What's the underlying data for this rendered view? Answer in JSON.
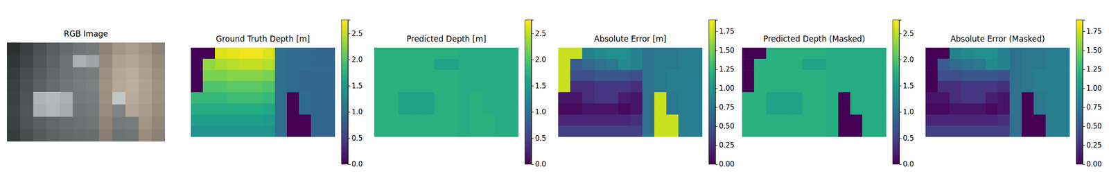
{
  "chart_data": [
    {
      "type": "image",
      "title": "RGB Image",
      "tick_labels": false,
      "colors": [
        [
          "#2b302f",
          "#394040",
          "#4a5150",
          "#585f5e",
          "#646b6a",
          "#6e7574",
          "#737a79",
          "#8c8276",
          "#a39687",
          "#ab9d8e",
          "#a29485",
          "#8e8377"
        ],
        [
          "#313736",
          "#3f4645",
          "#4f5655",
          "#5c6362",
          "#6a7170",
          "#a9b1b1",
          "#9ea6a6",
          "#958a7d",
          "#b0a292",
          "#b5a797",
          "#a89a8a",
          "#968a7d"
        ],
        [
          "#363c3b",
          "#464d4c",
          "#555c5b",
          "#616867",
          "#6c7372",
          "#737a79",
          "#777e7d",
          "#9a8f81",
          "#b4a696",
          "#baac9c",
          "#ad9f8f",
          "#9a8e81"
        ],
        [
          "#3a403f",
          "#4a5150",
          "#5a6160",
          "#656c6b",
          "#6f7675",
          "#757c7b",
          "#7a8180",
          "#9c9183",
          "#b6a898",
          "#bcae9e",
          "#b0a292",
          "#9d9184"
        ],
        [
          "#3c4241",
          "#4e5554",
          "#aeb5b5",
          "#b3baba",
          "#a9b0b0",
          "#737a79",
          "#767d7c",
          "#9a8f81",
          "#c2c6c4",
          "#b8aa9a",
          "#ae a090",
          "#9b8f82"
        ],
        [
          "#3d4342",
          "#4f5655",
          "#a8afaf",
          "#b1b8b8",
          "#a5acac",
          "#6f7675",
          "#737a79",
          "#968b7e",
          "#7c8382",
          "#b2a494",
          "#a99b8b",
          "#978b7e"
        ],
        [
          "#3b4140",
          "#4c5352",
          "#596060",
          "#626969",
          "#686f6e",
          "#6b7271",
          "#6e7574",
          "#8f8478",
          "#737a79",
          "#757c7b",
          "#a39585",
          "#92867a"
        ],
        [
          "#373d3c",
          "#474e4d",
          "#545b5a",
          "#5c6362",
          "#626968",
          "#656c6b",
          "#676e6d",
          "#877d72",
          "#6c7372",
          "#6e7574",
          "#9a8d7f",
          "#8b8074"
        ]
      ]
    },
    {
      "type": "heatmap",
      "title": "Ground Truth Depth [m]",
      "tick_labels": false,
      "cells": [
        [
          0,
          0,
          2.6,
          2.65,
          2.7,
          2.7,
          2.6,
          1.0,
          0.95,
          0.95,
          0.9,
          0.9
        ],
        [
          0,
          2.3,
          2.4,
          2.45,
          2.5,
          2.5,
          2.45,
          1.0,
          0.95,
          0.95,
          0.9,
          0.9
        ],
        [
          0,
          2.2,
          2.2,
          2.25,
          2.25,
          2.25,
          2.2,
          1.0,
          0.95,
          0.9,
          0.9,
          0.9
        ],
        [
          0,
          2.0,
          2.0,
          2.05,
          2.05,
          2.05,
          2.0,
          1.0,
          0.95,
          0.9,
          0.9,
          0.9
        ],
        [
          1.85,
          1.85,
          1.85,
          1.9,
          1.9,
          1.9,
          1.85,
          1.0,
          0,
          0.95,
          0.9,
          0.9
        ],
        [
          1.7,
          1.7,
          1.7,
          1.7,
          1.7,
          1.7,
          1.65,
          1.0,
          0,
          0.95,
          0.9,
          0.9
        ],
        [
          1.55,
          1.55,
          1.55,
          1.55,
          1.55,
          1.55,
          1.5,
          1.0,
          0,
          0,
          0.9,
          0.9
        ],
        [
          1.4,
          1.4,
          1.4,
          1.4,
          1.4,
          1.4,
          1.4,
          1.0,
          0,
          0,
          0.9,
          0.9
        ]
      ],
      "colorbar_range": [
        0,
        2.76
      ],
      "colorbar_ticks": [
        {
          "value": 0,
          "label": "0.0"
        },
        {
          "value": 0.5,
          "label": "0.5"
        },
        {
          "value": 1,
          "label": "1.0"
        },
        {
          "value": 1.5,
          "label": "1.5"
        },
        {
          "value": 2,
          "label": "2.0"
        },
        {
          "value": 2.5,
          "label": "2.5"
        }
      ]
    },
    {
      "type": "heatmap",
      "title": "Predicted Depth [m]",
      "tick_labels": false,
      "cells": [
        [
          1.75,
          1.75,
          1.75,
          1.75,
          1.75,
          1.75,
          1.75,
          1.7,
          1.7,
          1.7,
          1.7,
          1.7
        ],
        [
          1.75,
          1.75,
          1.75,
          1.75,
          1.75,
          1.6,
          1.6,
          1.7,
          1.7,
          1.7,
          1.7,
          1.7
        ],
        [
          1.75,
          1.75,
          1.75,
          1.75,
          1.75,
          1.75,
          1.75,
          1.7,
          1.7,
          1.7,
          1.7,
          1.7
        ],
        [
          1.75,
          1.75,
          1.75,
          1.75,
          1.75,
          1.75,
          1.75,
          1.7,
          1.7,
          1.7,
          1.7,
          1.7
        ],
        [
          1.75,
          1.75,
          1.6,
          1.6,
          1.6,
          1.75,
          1.75,
          1.7,
          1.75,
          1.7,
          1.7,
          1.7
        ],
        [
          1.75,
          1.75,
          1.6,
          1.6,
          1.6,
          1.75,
          1.75,
          1.7,
          1.75,
          1.7,
          1.7,
          1.7
        ],
        [
          1.75,
          1.75,
          1.75,
          1.75,
          1.75,
          1.75,
          1.75,
          1.7,
          1.75,
          1.75,
          1.7,
          1.7
        ],
        [
          1.75,
          1.75,
          1.75,
          1.75,
          1.75,
          1.75,
          1.75,
          1.7,
          1.75,
          1.75,
          1.7,
          1.7
        ]
      ],
      "colorbar_range": [
        0,
        2.76
      ],
      "colorbar_ticks": [
        {
          "value": 0,
          "label": "0.0"
        },
        {
          "value": 0.5,
          "label": "0.5"
        },
        {
          "value": 1,
          "label": "1.0"
        },
        {
          "value": 1.5,
          "label": "1.5"
        },
        {
          "value": 2,
          "label": "2.0"
        },
        {
          "value": 2.5,
          "label": "2.5"
        }
      ]
    },
    {
      "type": "heatmap",
      "title": "Absolute Error [m]",
      "tick_labels": false,
      "cells": [
        [
          1.75,
          1.75,
          0.85,
          0.9,
          0.95,
          0.95,
          0.85,
          0.7,
          0.75,
          0.75,
          0.8,
          0.8
        ],
        [
          1.75,
          0.55,
          0.65,
          0.7,
          0.75,
          0.9,
          0.85,
          0.7,
          0.75,
          0.75,
          0.8,
          0.8
        ],
        [
          1.75,
          0.45,
          0.45,
          0.5,
          0.5,
          0.5,
          0.45,
          0.7,
          0.75,
          0.8,
          0.8,
          0.8
        ],
        [
          1.75,
          0.25,
          0.25,
          0.3,
          0.3,
          0.3,
          0.25,
          0.7,
          0.75,
          0.8,
          0.8,
          0.8
        ],
        [
          0.1,
          0.1,
          0.25,
          0.3,
          0.3,
          0.15,
          0.1,
          0.7,
          1.75,
          0.75,
          0.8,
          0.8
        ],
        [
          0.05,
          0.05,
          0.1,
          0.1,
          0.1,
          0.05,
          0.1,
          0.7,
          1.75,
          0.75,
          0.8,
          0.8
        ],
        [
          0.2,
          0.2,
          0.2,
          0.2,
          0.2,
          0.2,
          0.25,
          0.7,
          1.75,
          1.75,
          0.8,
          0.8
        ],
        [
          0.35,
          0.35,
          0.35,
          0.35,
          0.35,
          0.35,
          0.35,
          0.7,
          1.75,
          1.75,
          0.8,
          0.8
        ]
      ],
      "colorbar_range": [
        0,
        1.9
      ],
      "colorbar_ticks": [
        {
          "value": 0,
          "label": "0.00"
        },
        {
          "value": 0.25,
          "label": "0.25"
        },
        {
          "value": 0.5,
          "label": "0.50"
        },
        {
          "value": 0.75,
          "label": "0.75"
        },
        {
          "value": 1,
          "label": "1.00"
        },
        {
          "value": 1.25,
          "label": "1.25"
        },
        {
          "value": 1.5,
          "label": "1.50"
        },
        {
          "value": 1.75,
          "label": "1.75"
        }
      ]
    },
    {
      "type": "heatmap",
      "title": "Predicted Depth (Masked)",
      "tick_labels": false,
      "cells": [
        [
          0,
          0,
          1.75,
          1.75,
          1.75,
          1.75,
          1.75,
          1.7,
          1.7,
          1.7,
          1.7,
          1.7
        ],
        [
          0,
          1.75,
          1.75,
          1.75,
          1.75,
          1.6,
          1.6,
          1.7,
          1.7,
          1.7,
          1.7,
          1.7
        ],
        [
          0,
          1.75,
          1.75,
          1.75,
          1.75,
          1.75,
          1.75,
          1.7,
          1.7,
          1.7,
          1.7,
          1.7
        ],
        [
          0,
          1.75,
          1.75,
          1.75,
          1.75,
          1.75,
          1.75,
          1.7,
          1.7,
          1.7,
          1.7,
          1.7
        ],
        [
          1.75,
          1.75,
          1.6,
          1.6,
          1.6,
          1.75,
          1.75,
          1.7,
          0,
          1.7,
          1.7,
          1.7
        ],
        [
          1.75,
          1.75,
          1.6,
          1.6,
          1.6,
          1.75,
          1.75,
          1.7,
          0,
          1.7,
          1.7,
          1.7
        ],
        [
          1.75,
          1.75,
          1.75,
          1.75,
          1.75,
          1.75,
          1.75,
          1.7,
          0,
          0,
          1.7,
          1.7
        ],
        [
          1.75,
          1.75,
          1.75,
          1.75,
          1.75,
          1.75,
          1.75,
          1.7,
          0,
          0,
          1.7,
          1.7
        ]
      ],
      "colorbar_range": [
        0,
        2.76
      ],
      "colorbar_ticks": [
        {
          "value": 0,
          "label": "0.0"
        },
        {
          "value": 0.5,
          "label": "0.5"
        },
        {
          "value": 1,
          "label": "1.0"
        },
        {
          "value": 1.5,
          "label": "1.5"
        },
        {
          "value": 2,
          "label": "2.0"
        },
        {
          "value": 2.5,
          "label": "2.5"
        }
      ]
    },
    {
      "type": "heatmap",
      "title": "Absolute Error (Masked)",
      "tick_labels": false,
      "cells": [
        [
          0,
          0,
          0.85,
          0.9,
          0.95,
          0.95,
          0.85,
          0.7,
          0.75,
          0.75,
          0.8,
          0.8
        ],
        [
          0,
          0.55,
          0.65,
          0.7,
          0.75,
          0.9,
          0.85,
          0.7,
          0.75,
          0.75,
          0.8,
          0.8
        ],
        [
          0,
          0.45,
          0.45,
          0.5,
          0.5,
          0.5,
          0.45,
          0.7,
          0.75,
          0.8,
          0.8,
          0.8
        ],
        [
          0,
          0.25,
          0.25,
          0.3,
          0.3,
          0.3,
          0.25,
          0.7,
          0.75,
          0.8,
          0.8,
          0.8
        ],
        [
          0.1,
          0.1,
          0.25,
          0.3,
          0.3,
          0.15,
          0.1,
          0.7,
          0,
          0.75,
          0.8,
          0.8
        ],
        [
          0.05,
          0.05,
          0.1,
          0.1,
          0.1,
          0.05,
          0.1,
          0.7,
          0,
          0.75,
          0.8,
          0.8
        ],
        [
          0.2,
          0.2,
          0.2,
          0.2,
          0.2,
          0.2,
          0.25,
          0.7,
          0,
          0,
          0.8,
          0.8
        ],
        [
          0.35,
          0.35,
          0.35,
          0.35,
          0.35,
          0.35,
          0.35,
          0.7,
          0,
          0,
          0.8,
          0.8
        ]
      ],
      "colorbar_range": [
        0,
        1.9
      ],
      "colorbar_ticks": [
        {
          "value": 0,
          "label": "0.00"
        },
        {
          "value": 0.25,
          "label": "0.25"
        },
        {
          "value": 0.5,
          "label": "0.50"
        },
        {
          "value": 0.75,
          "label": "0.75"
        },
        {
          "value": 1,
          "label": "1.00"
        },
        {
          "value": 1.25,
          "label": "1.25"
        },
        {
          "value": 1.5,
          "label": "1.50"
        },
        {
          "value": 1.75,
          "label": "1.75"
        }
      ]
    }
  ]
}
